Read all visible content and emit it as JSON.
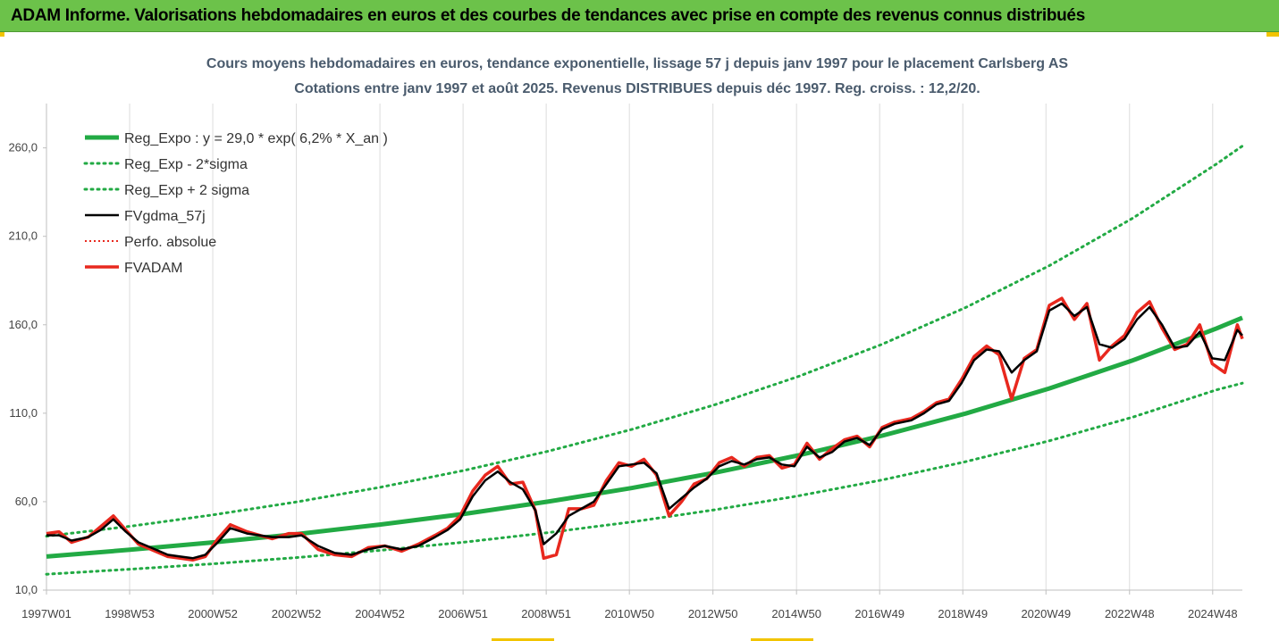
{
  "banner": {
    "title": "ADAM Informe. Valorisations hebdomadaires en euros et des courbes de tendances avec prise en compte des revenus connus distribués"
  },
  "colors": {
    "banner": "#6cc24a",
    "reg_expo": "#22aa44",
    "sigma_bands": "#22aa44",
    "gdma": "#000000",
    "perfo": "#e8281e",
    "fvadam": "#e8281e",
    "accent": "#f2c400"
  },
  "chart_data": {
    "type": "line",
    "title": "Cours moyens hebdomadaires en euros, tendance exponentielle, lissage 57 j depuis janv 1997 pour le placement Carlsberg AS",
    "subtitle": "Cotations entre janv 1997 et août 2025.  Revenus DISTRIBUES depuis déc 1997. Reg. croiss. : 12,2/20.",
    "xlabel": "",
    "ylabel": "",
    "x_range": [
      1997.0,
      2025.62
    ],
    "ylim": [
      10,
      280
    ],
    "y_ticks": [
      10,
      60,
      110,
      160,
      210,
      260
    ],
    "y_tick_labels": [
      "10,0",
      "60,0",
      "110,0",
      "160,0",
      "210,0",
      "260,0"
    ],
    "x_ticks": [
      1997.0,
      1998.99,
      2000.98,
      2002.98,
      2004.98,
      2006.97,
      2008.96,
      2010.95,
      2012.95,
      2014.95,
      2016.94,
      2018.93,
      2020.92,
      2022.92,
      2024.91
    ],
    "x_tick_labels": [
      "1997W01",
      "1998W53",
      "2000W52",
      "2002W52",
      "2004W52",
      "2006W51",
      "2008W51",
      "2010W50",
      "2012W50",
      "2014W50",
      "2016W49",
      "2018W49",
      "2020W49",
      "2022W48",
      "2024W48"
    ],
    "grid": "vertical",
    "legend_position": "top-left",
    "series": [
      {
        "name": "Reg_Expo : y = 29,0 * exp( 6,2% *  X_an )",
        "style": "thick-solid",
        "x": [
          1997,
          1999,
          2001,
          2003,
          2005,
          2007,
          2009,
          2011,
          2013,
          2015,
          2017,
          2019,
          2021,
          2023,
          2025,
          2025.62
        ],
        "values": [
          29.0,
          32.8,
          37.0,
          41.7,
          47.1,
          53.1,
          60.0,
          67.7,
          76.4,
          86.2,
          97.3,
          109.8,
          124.0,
          139.9,
          157.9,
          164.0
        ]
      },
      {
        "name": "Reg_Exp - 2*sigma",
        "style": "dotted",
        "x": [
          1997,
          1999,
          2001,
          2003,
          2005,
          2007,
          2009,
          2011,
          2013,
          2015,
          2017,
          2019,
          2021,
          2023,
          2025,
          2025.62
        ],
        "values": [
          19.0,
          21.8,
          24.9,
          28.4,
          32.5,
          37.1,
          42.5,
          48.5,
          55.4,
          63.3,
          72.3,
          82.6,
          94.4,
          107.8,
          123.2,
          127.0
        ]
      },
      {
        "name": "Reg_Exp + 2 sigma",
        "style": "dotted",
        "x": [
          1997,
          1999,
          2001,
          2003,
          2005,
          2007,
          2009,
          2011,
          2013,
          2015,
          2017,
          2019,
          2021,
          2023,
          2025,
          2025.62
        ],
        "values": [
          40.5,
          46.1,
          52.6,
          59.9,
          68.2,
          77.7,
          88.5,
          100.8,
          114.8,
          130.8,
          149.0,
          169.8,
          193.4,
          220.3,
          250.9,
          261.0
        ]
      },
      {
        "name": "FVgdma_57j",
        "style": "solid",
        "x": [
          1997,
          1997.3,
          1997.6,
          1998.0,
          1998.3,
          1998.6,
          1998.9,
          1999.2,
          1999.5,
          1999.9,
          2000.2,
          2000.5,
          2000.8,
          2001.1,
          2001.4,
          2001.8,
          2002.1,
          2002.4,
          2002.8,
          2003.1,
          2003.5,
          2003.9,
          2004.3,
          2004.7,
          2005.1,
          2005.5,
          2005.9,
          2006.3,
          2006.6,
          2006.9,
          2007.2,
          2007.5,
          2007.8,
          2008.1,
          2008.4,
          2008.7,
          2008.9,
          2009.2,
          2009.5,
          2009.8,
          2010.1,
          2010.4,
          2010.7,
          2011.0,
          2011.3,
          2011.6,
          2011.9,
          2012.2,
          2012.5,
          2012.8,
          2013.1,
          2013.4,
          2013.7,
          2014.0,
          2014.3,
          2014.6,
          2014.9,
          2015.2,
          2015.5,
          2015.8,
          2016.1,
          2016.4,
          2016.7,
          2017.0,
          2017.3,
          2017.7,
          2018.0,
          2018.3,
          2018.6,
          2018.9,
          2019.2,
          2019.5,
          2019.8,
          2020.1,
          2020.4,
          2020.7,
          2021.0,
          2021.3,
          2021.6,
          2021.9,
          2022.2,
          2022.5,
          2022.8,
          2023.1,
          2023.4,
          2023.7,
          2024.0,
          2024.3,
          2024.6,
          2024.9,
          2025.2,
          2025.5,
          2025.62
        ],
        "values": [
          41,
          41,
          38,
          40,
          44,
          50,
          43,
          37,
          34,
          30,
          29,
          28,
          30,
          37,
          45,
          42,
          41,
          40,
          40,
          41,
          35,
          31,
          30,
          33,
          35,
          33,
          35,
          40,
          44,
          50,
          63,
          72,
          77,
          71,
          67,
          55,
          36,
          42,
          52,
          56,
          60,
          70,
          80,
          81,
          82,
          76,
          56,
          62,
          68,
          73,
          80,
          83,
          81,
          84,
          85,
          81,
          80,
          91,
          85,
          88,
          94,
          96,
          92,
          101,
          104,
          106,
          110,
          115,
          117,
          127,
          140,
          146,
          145,
          133,
          140,
          145,
          168,
          172,
          165,
          170,
          149,
          147,
          152,
          163,
          170,
          160,
          147,
          148,
          156,
          141,
          140,
          157,
          154
        ]
      },
      {
        "name": "Perfo. absolue",
        "style": "dotted",
        "x": [
          1997,
          1997.3,
          1997.6,
          1998.0,
          1998.3,
          1998.6,
          1998.9,
          1999.2,
          1999.5,
          1999.9,
          2000.2,
          2000.5,
          2000.8,
          2001.1,
          2001.4,
          2001.8,
          2002.1,
          2002.4,
          2002.8,
          2003.1,
          2003.5,
          2003.9,
          2004.3,
          2004.7,
          2005.1,
          2005.5,
          2005.9,
          2006.3,
          2006.6,
          2006.9,
          2007.2,
          2007.5,
          2007.8,
          2008.1,
          2008.4,
          2008.7,
          2008.9,
          2009.2,
          2009.5,
          2009.8,
          2010.1,
          2010.4,
          2010.7,
          2011.0,
          2011.3,
          2011.6,
          2011.9,
          2012.2,
          2012.5,
          2012.8,
          2013.1,
          2013.4,
          2013.7,
          2014.0,
          2014.3,
          2014.6,
          2014.9,
          2015.2,
          2015.5,
          2015.8,
          2016.1,
          2016.4,
          2016.7,
          2017.0,
          2017.3,
          2017.7,
          2018.0,
          2018.3,
          2018.6,
          2018.9,
          2019.2,
          2019.5,
          2019.8,
          2020.1,
          2020.4,
          2020.7,
          2021.0,
          2021.3,
          2021.6,
          2021.9,
          2022.2,
          2022.5,
          2022.8,
          2023.1,
          2023.4,
          2023.7,
          2024.0,
          2024.3,
          2024.6,
          2024.9,
          2025.2,
          2025.5,
          2025.62
        ],
        "values": [
          42,
          43,
          37,
          40,
          46,
          52,
          44,
          36,
          33,
          29,
          28,
          27,
          29,
          39,
          47,
          43,
          41,
          39,
          42,
          42,
          33,
          30,
          29,
          34,
          35,
          32,
          36,
          41,
          45,
          52,
          66,
          75,
          80,
          70,
          71,
          55,
          28,
          30,
          56,
          56,
          58,
          72,
          82,
          80,
          84,
          75,
          52,
          60,
          70,
          73,
          82,
          85,
          80,
          85,
          86,
          79,
          81,
          93,
          84,
          90,
          95,
          97,
          91,
          102,
          105,
          107,
          111,
          116,
          118,
          129,
          142,
          148,
          143,
          118,
          141,
          146,
          171,
          175,
          163,
          172,
          140,
          148,
          154,
          167,
          173,
          158,
          146,
          149,
          160,
          138,
          133,
          160,
          152
        ]
      },
      {
        "name": "FVADAM",
        "style": "thick-solid",
        "x": [
          1997,
          1997.3,
          1997.6,
          1998.0,
          1998.3,
          1998.6,
          1998.9,
          1999.2,
          1999.5,
          1999.9,
          2000.2,
          2000.5,
          2000.8,
          2001.1,
          2001.4,
          2001.8,
          2002.1,
          2002.4,
          2002.8,
          2003.1,
          2003.5,
          2003.9,
          2004.3,
          2004.7,
          2005.1,
          2005.5,
          2005.9,
          2006.3,
          2006.6,
          2006.9,
          2007.2,
          2007.5,
          2007.8,
          2008.1,
          2008.4,
          2008.7,
          2008.9,
          2009.2,
          2009.5,
          2009.8,
          2010.1,
          2010.4,
          2010.7,
          2011.0,
          2011.3,
          2011.6,
          2011.9,
          2012.2,
          2012.5,
          2012.8,
          2013.1,
          2013.4,
          2013.7,
          2014.0,
          2014.3,
          2014.6,
          2014.9,
          2015.2,
          2015.5,
          2015.8,
          2016.1,
          2016.4,
          2016.7,
          2017.0,
          2017.3,
          2017.7,
          2018.0,
          2018.3,
          2018.6,
          2018.9,
          2019.2,
          2019.5,
          2019.8,
          2020.1,
          2020.4,
          2020.7,
          2021.0,
          2021.3,
          2021.6,
          2021.9,
          2022.2,
          2022.5,
          2022.8,
          2023.1,
          2023.4,
          2023.7,
          2024.0,
          2024.3,
          2024.6,
          2024.9,
          2025.2,
          2025.5,
          2025.62
        ],
        "values": [
          42,
          43,
          37,
          40,
          46,
          52,
          44,
          36,
          33,
          29,
          28,
          27,
          29,
          39,
          47,
          43,
          41,
          39,
          42,
          42,
          33,
          30,
          29,
          34,
          35,
          32,
          36,
          41,
          45,
          52,
          66,
          75,
          80,
          70,
          71,
          55,
          28,
          30,
          56,
          56,
          58,
          72,
          82,
          80,
          84,
          75,
          52,
          60,
          70,
          73,
          82,
          85,
          80,
          85,
          86,
          79,
          81,
          93,
          84,
          90,
          95,
          97,
          91,
          102,
          105,
          107,
          111,
          116,
          118,
          129,
          142,
          148,
          143,
          118,
          141,
          146,
          171,
          175,
          163,
          172,
          140,
          148,
          154,
          167,
          173,
          158,
          146,
          149,
          160,
          138,
          133,
          160,
          152
        ]
      }
    ]
  }
}
